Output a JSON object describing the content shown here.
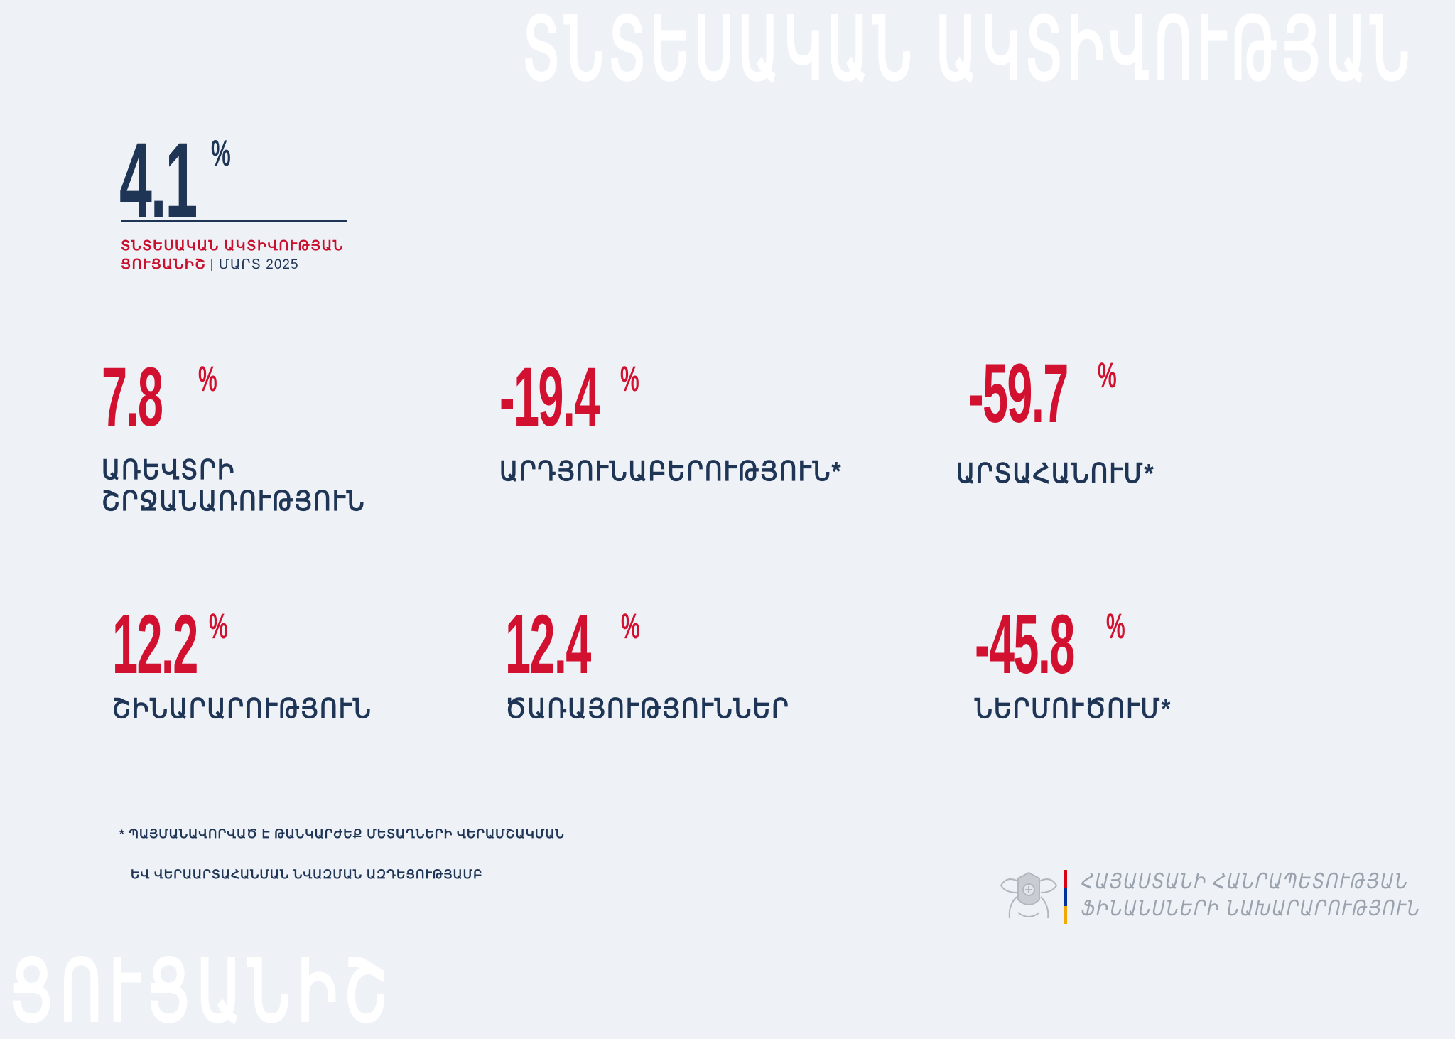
{
  "watermark": {
    "top": "ՏՆՏԵՍԱԿԱՆ ԱԿՏԻՎՈՒԹՅԱՆ",
    "bottom": "ՑՈՒՑԱՆԻՇ"
  },
  "headline": {
    "value": "4.1",
    "unit": "%",
    "caption_line1": "ՏՆՏԵՍԱԿԱՆ ԱԿՏԻՎՈՒԹՅԱՆ",
    "caption_line2": "ՑՈՒՑԱՆԻՇ",
    "period": "| ՄԱՐՏ 2025"
  },
  "stats": [
    {
      "value": "7.8",
      "unit": "%",
      "label_line1": "ԱՌԵՎՏՐԻ",
      "label_line2": "ՇՐՋԱՆԱՌՈՒԹՅՈՒՆ"
    },
    {
      "value": "-19.4",
      "unit": "%",
      "label_line1": "ԱՐԴՅՈՒՆԱԲԵՐՈՒԹՅՈՒՆ*"
    },
    {
      "value": "-59.7",
      "unit": "%",
      "label_line1": "ԱՐՏԱՀԱՆՈՒՄ*"
    },
    {
      "value": "12.2",
      "unit": "%",
      "label_line1": "ՇԻՆԱՐԱՐՈՒԹՅՈՒՆ"
    },
    {
      "value": "12.4",
      "unit": "%",
      "label_line1": "ԾԱՌԱՅՈՒԹՅՈՒՆՆԵՐ"
    },
    {
      "value": "-45.8",
      "unit": "%",
      "label_line1": "ՆԵՐՄՈՒԾՈՒՄ*"
    }
  ],
  "footnote": {
    "line1": "* ՊԱՅՄԱՆԱՎՈՐՎԱԾ Է ԹԱՆԿԱՐԺԵՔ ՄԵՏԱՂՆԵՐԻ ՎԵՐԱՄՇԱԿՄԱՆ",
    "line2": "ԵՎ ՎԵՐԱԱՐՏԱՀԱՆՄԱՆ ՆՎԱԶՄԱՆ ԱԶԴԵՑՈՒԹՅԱՄԲ"
  },
  "ministry": {
    "line1": "ՀԱՅԱՍՏԱՆԻ ՀԱՆՐԱՊԵՏՈՒԹՅԱՆ",
    "line2": "ՖԻՆԱՆՍՆԵՐԻ ՆԱԽԱՐԱՐՈՒԹՅՈՒՆ"
  },
  "colors": {
    "background": "#eef2f7",
    "navy": "#1f3556",
    "red": "#d2102f",
    "flag": [
      "#d90012",
      "#0033a0",
      "#f2a800"
    ]
  },
  "icons": {
    "logo": "coat-of-arms-icon"
  }
}
